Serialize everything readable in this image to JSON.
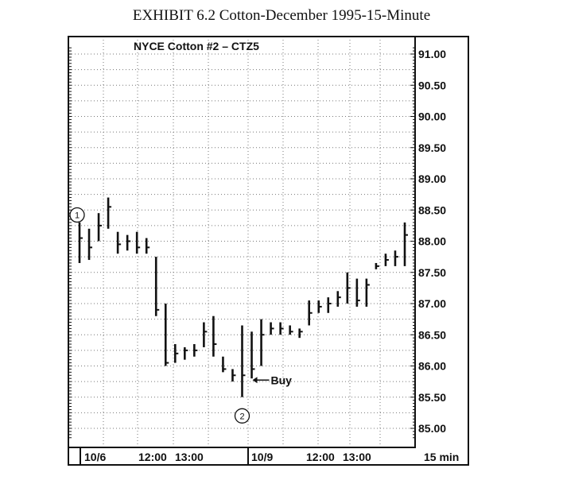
{
  "exhibit_title": "EXHIBIT 6.2 Cotton-December 1995-15-Minute",
  "chart_data": {
    "type": "bar",
    "title": "NYCE Cotton #2 – CTZ5",
    "ylim": [
      84.8,
      91.15
    ],
    "yticks": [
      "91.00",
      "90.50",
      "90.00",
      "89.50",
      "89.00",
      "88.50",
      "88.00",
      "87.50",
      "87.00",
      "86.50",
      "86.00",
      "85.50",
      "85.00"
    ],
    "xticks": [
      "10/6",
      "12:00",
      "13:00",
      "10/9",
      "12:00",
      "13:00"
    ],
    "interval_label": "15 min",
    "grid": true,
    "bars": [
      {
        "h": 88.3,
        "l": 87.65,
        "c": 88.05
      },
      {
        "h": 88.2,
        "l": 87.7,
        "c": 87.9
      },
      {
        "h": 88.45,
        "l": 88.0,
        "c": 88.25
      },
      {
        "h": 88.7,
        "l": 88.2,
        "c": 88.55
      },
      {
        "h": 88.15,
        "l": 87.8,
        "c": 87.95
      },
      {
        "h": 88.1,
        "l": 87.85,
        "c": 88.0
      },
      {
        "h": 88.15,
        "l": 87.8,
        "c": 87.9
      },
      {
        "h": 88.05,
        "l": 87.8,
        "c": 87.9
      },
      {
        "h": 87.75,
        "l": 86.8,
        "c": 86.9
      },
      {
        "h": 87.0,
        "l": 86.0,
        "c": 86.05
      },
      {
        "h": 86.35,
        "l": 86.05,
        "c": 86.2
      },
      {
        "h": 86.3,
        "l": 86.1,
        "c": 86.25
      },
      {
        "h": 86.35,
        "l": 86.15,
        "c": 86.25
      },
      {
        "h": 86.7,
        "l": 86.3,
        "c": 86.55
      },
      {
        "h": 86.8,
        "l": 86.15,
        "c": 86.35
      },
      {
        "h": 86.15,
        "l": 85.9,
        "c": 85.95
      },
      {
        "h": 85.95,
        "l": 85.75,
        "c": 85.85
      },
      {
        "h": 86.65,
        "l": 85.5,
        "c": 85.85
      },
      {
        "h": 86.55,
        "l": 85.8,
        "c": 85.95
      },
      {
        "h": 86.75,
        "l": 86.0,
        "c": 86.5
      },
      {
        "h": 86.7,
        "l": 86.5,
        "c": 86.6
      },
      {
        "h": 86.7,
        "l": 86.5,
        "c": 86.6
      },
      {
        "h": 86.65,
        "l": 86.5,
        "c": 86.55
      },
      {
        "h": 86.6,
        "l": 86.45,
        "c": 86.55
      },
      {
        "h": 87.05,
        "l": 86.65,
        "c": 86.85
      },
      {
        "h": 87.05,
        "l": 86.85,
        "c": 86.95
      },
      {
        "h": 87.1,
        "l": 86.85,
        "c": 87.0
      },
      {
        "h": 87.2,
        "l": 86.95,
        "c": 87.1
      },
      {
        "h": 87.5,
        "l": 87.0,
        "c": 87.25
      },
      {
        "h": 87.4,
        "l": 86.95,
        "c": 87.05
      },
      {
        "h": 87.4,
        "l": 86.95,
        "c": 87.3
      },
      {
        "h": 87.65,
        "l": 87.55,
        "c": 87.6
      },
      {
        "h": 87.8,
        "l": 87.6,
        "c": 87.7
      },
      {
        "h": 87.85,
        "l": 87.6,
        "c": 87.75
      },
      {
        "h": 88.3,
        "l": 87.6,
        "c": 88.1
      }
    ],
    "annotations": [
      {
        "label": "1",
        "bar": 0,
        "level": 88.42,
        "side": "above"
      },
      {
        "label": "2",
        "bar": 17,
        "level": 85.2,
        "side": "below"
      },
      {
        "label": "Buy",
        "bar": 18,
        "level": 85.85
      }
    ]
  }
}
